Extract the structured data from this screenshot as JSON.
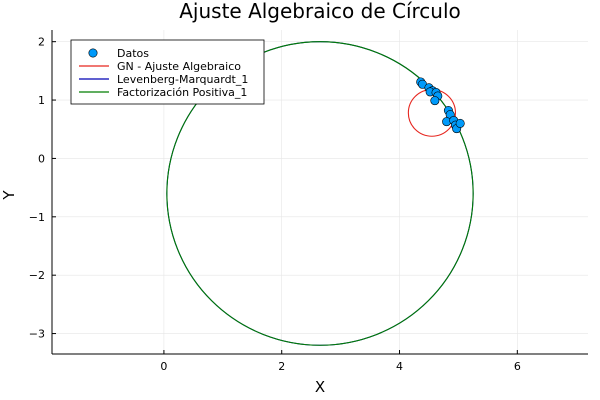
{
  "chart_data": {
    "type": "scatter",
    "title": "Ajuste Algebraico de Círculo",
    "xlabel": "X",
    "ylabel": "Y",
    "xlim": [
      -1.9,
      7.2
    ],
    "ylim": [
      -3.35,
      2.2
    ],
    "x_ticks": [
      0,
      2,
      4,
      6
    ],
    "y_ticks": [
      -3,
      -2,
      -1,
      0,
      1,
      2
    ],
    "grid": true,
    "legend_position": "top-left",
    "series": [
      {
        "name": "Datos",
        "kind": "scatter",
        "color": "#009AFA",
        "points": [
          [
            4.36,
            1.31
          ],
          [
            4.39,
            1.27
          ],
          [
            4.5,
            1.21
          ],
          [
            4.56,
            1.16
          ],
          [
            4.52,
            1.14
          ],
          [
            4.62,
            1.13
          ],
          [
            4.65,
            1.07
          ],
          [
            4.6,
            0.99
          ],
          [
            4.83,
            0.82
          ],
          [
            4.86,
            0.75
          ],
          [
            4.8,
            0.63
          ],
          [
            4.92,
            0.65
          ],
          [
            4.95,
            0.57
          ],
          [
            4.97,
            0.51
          ],
          [
            5.03,
            0.6
          ]
        ]
      },
      {
        "name": "GN - Ajuste Algebraico",
        "kind": "circle",
        "color": "#E6261F",
        "center": [
          4.55,
          0.78
        ],
        "radius": 0.4
      },
      {
        "name": "Levenberg-Marquardt_1",
        "kind": "circle",
        "color": "#0000B3",
        "center": [
          2.65,
          -0.6
        ],
        "radius": 2.6
      },
      {
        "name": "Factorización Positiva_1",
        "kind": "circle",
        "color": "#007D00",
        "center": [
          2.65,
          -0.6
        ],
        "radius": 2.6
      }
    ]
  }
}
